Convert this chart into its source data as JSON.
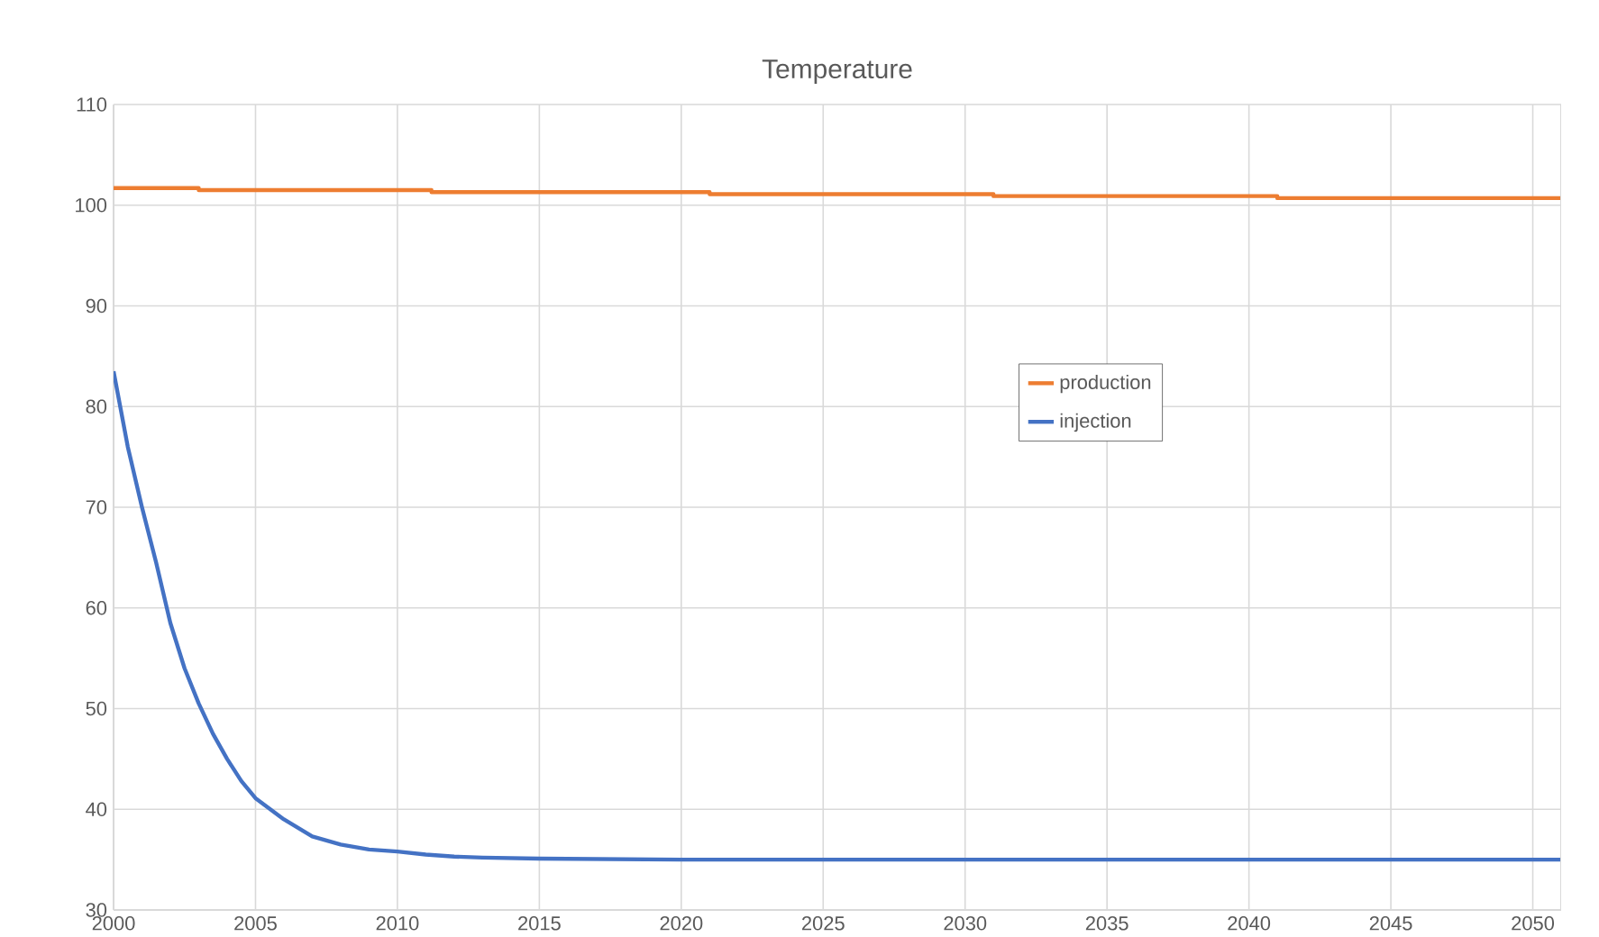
{
  "chart_data": {
    "type": "line",
    "title": "Temperature",
    "xlim": [
      2000,
      2051
    ],
    "xticks": [
      2000,
      2005,
      2010,
      2015,
      2020,
      2025,
      2030,
      2035,
      2040,
      2045,
      2050
    ],
    "ylim": [
      30,
      110
    ],
    "yticks": [
      30,
      40,
      50,
      60,
      70,
      80,
      90,
      100,
      110
    ],
    "grid": true,
    "legend": "right",
    "marker": "none",
    "line_style": "solid",
    "series": [
      {
        "name": "production",
        "type": "step",
        "color": "#ed7d31",
        "x": [
          2000,
          2003,
          2011.2,
          2021,
          2031,
          2041,
          2051
        ],
        "values": [
          101.7,
          101.5,
          101.3,
          101.1,
          100.9,
          100.7,
          100.7
        ]
      },
      {
        "name": "injection",
        "color": "#4472c4",
        "x": [
          2000,
          2000.5,
          2001,
          2001.5,
          2002,
          2002.5,
          2003,
          2003.5,
          2004,
          2004.5,
          2005,
          2006,
          2007,
          2008,
          2009,
          2010,
          2011,
          2012,
          2013,
          2015,
          2020,
          2051
        ],
        "values": [
          83.5,
          76,
          70,
          64.5,
          58.5,
          54,
          50.5,
          47.5,
          45,
          42.8,
          41.1,
          39,
          37.3,
          36.5,
          36,
          35.8,
          35.5,
          35.3,
          35.2,
          35.1,
          35,
          35
        ]
      }
    ]
  }
}
